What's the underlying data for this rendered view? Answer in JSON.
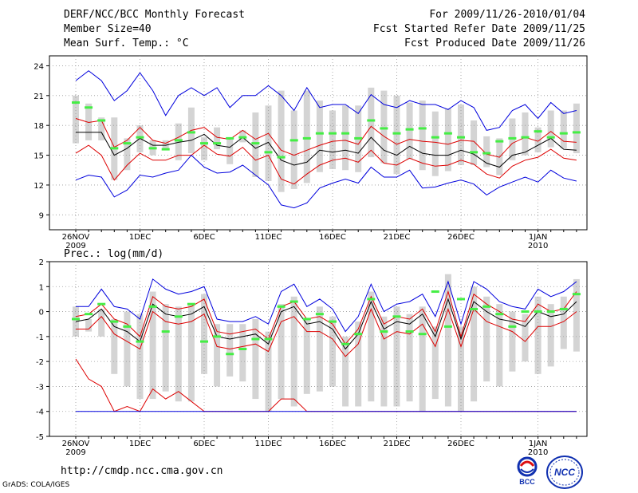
{
  "header": {
    "title": "DERF/NCC/BCC Monthly Forecast",
    "member": "Member Size=40",
    "panel1_label": "Mean Surf. Temp.: °C",
    "period": "For 2009/11/26-2010/01/04",
    "started": "Fcst Started Refer Date 2009/11/25",
    "produced": "Fcst Produced Date 2009/11/26"
  },
  "footer": {
    "url": "http://cmdp.ncc.cma.gov.cn",
    "grads": "GrADS: COLA/IGES",
    "logo_left": "BCC",
    "logo_right": "NCC"
  },
  "colors": {
    "blue": "#0000dd",
    "red": "#dd0000",
    "black": "#000000",
    "box": "#d4d4d4",
    "obs": "#44ee44"
  },
  "chart_data": [
    {
      "type": "line",
      "title": "Mean Surf. Temp.: °C",
      "days": [
        "26",
        "27",
        "28",
        "29",
        "30",
        "1",
        "2",
        "3",
        "4",
        "5",
        "6",
        "7",
        "8",
        "9",
        "10",
        "11",
        "12",
        "13",
        "14",
        "15",
        "16",
        "17",
        "18",
        "19",
        "20",
        "21",
        "22",
        "23",
        "24",
        "25",
        "26",
        "27",
        "28",
        "29",
        "30",
        "31",
        "1",
        "2",
        "3",
        "4"
      ],
      "xticks": [
        {
          "label": "26NOV",
          "sub": "2009",
          "i": 0
        },
        {
          "label": "1DEC",
          "sub": "",
          "i": 5
        },
        {
          "label": "6DEC",
          "sub": "",
          "i": 10
        },
        {
          "label": "11DEC",
          "sub": "",
          "i": 15
        },
        {
          "label": "16DEC",
          "sub": "",
          "i": 20
        },
        {
          "label": "21DEC",
          "sub": "",
          "i": 25
        },
        {
          "label": "26DEC",
          "sub": "",
          "i": 30
        },
        {
          "label": "1JAN",
          "sub": "2010",
          "i": 36
        }
      ],
      "yticks": [
        9,
        12,
        15,
        18,
        21,
        24
      ],
      "ylim": [
        7.5,
        25
      ],
      "grid": true,
      "series": [
        {
          "name": "max",
          "color": "blue",
          "values": [
            22.5,
            23.5,
            22.5,
            20.5,
            21.5,
            23.3,
            21.5,
            19.0,
            21.0,
            21.8,
            21.0,
            21.8,
            19.8,
            21.0,
            21.0,
            22.0,
            21.0,
            19.5,
            21.8,
            19.8,
            20.1,
            20.1,
            19.2,
            21.1,
            20.1,
            19.8,
            20.5,
            20.1,
            20.1,
            19.6,
            20.5,
            19.8,
            17.5,
            17.8,
            19.5,
            20.1,
            18.7,
            20.3,
            19.2,
            19.5
          ]
        },
        {
          "name": "upper",
          "color": "red",
          "values": [
            18.7,
            18.3,
            18.5,
            15.8,
            16.5,
            17.8,
            16.5,
            16.2,
            16.8,
            17.5,
            17.8,
            16.8,
            16.6,
            17.5,
            16.6,
            17.2,
            15.5,
            15.0,
            15.5,
            16.0,
            16.4,
            16.5,
            16.1,
            17.9,
            16.9,
            16.1,
            16.6,
            16.4,
            16.3,
            16.1,
            16.5,
            16.4,
            15.1,
            14.8,
            16.2,
            16.8,
            16.4,
            17.4,
            16.4,
            16.3
          ]
        },
        {
          "name": "mean",
          "color": "black",
          "values": [
            17.3,
            17.3,
            17.3,
            15.0,
            15.7,
            16.7,
            16.0,
            16.0,
            16.3,
            16.5,
            17.1,
            16.0,
            15.8,
            16.8,
            15.7,
            16.3,
            14.5,
            14.0,
            14.3,
            15.5,
            15.3,
            15.5,
            15.2,
            16.8,
            15.5,
            15.0,
            15.9,
            15.2,
            15.0,
            15.0,
            15.5,
            15.1,
            14.2,
            13.8,
            15.0,
            15.3,
            16.0,
            16.7,
            15.6,
            15.5
          ]
        },
        {
          "name": "lower",
          "color": "red",
          "values": [
            15.2,
            16.0,
            15.0,
            12.5,
            14.0,
            15.2,
            14.5,
            14.5,
            15.0,
            15.0,
            16.0,
            15.1,
            14.9,
            15.8,
            14.5,
            15.0,
            12.6,
            12.1,
            13.1,
            14.0,
            14.5,
            14.7,
            14.3,
            15.5,
            14.2,
            14.0,
            14.7,
            14.2,
            13.9,
            14.0,
            14.5,
            14.1,
            13.1,
            12.7,
            13.9,
            14.5,
            14.8,
            15.6,
            14.7,
            14.5
          ]
        },
        {
          "name": "min",
          "color": "blue",
          "values": [
            12.5,
            13.0,
            12.8,
            10.8,
            11.5,
            13.0,
            12.8,
            13.2,
            13.5,
            15.0,
            13.8,
            13.2,
            13.3,
            14.0,
            13.0,
            12.0,
            10.0,
            9.7,
            10.2,
            11.7,
            12.2,
            12.6,
            12.2,
            13.8,
            12.8,
            12.8,
            13.5,
            11.7,
            11.8,
            12.2,
            12.5,
            12.1,
            11.0,
            11.8,
            12.3,
            12.8,
            12.3,
            13.5,
            12.7,
            12.4
          ]
        }
      ],
      "box_low": [
        16.2,
        16.5,
        16.5,
        12.5,
        13.5,
        15.3,
        15.0,
        15.5,
        14.5,
        15.2,
        14.5,
        15.6,
        14.1,
        16.3,
        12.8,
        12.4,
        11.3,
        11.6,
        12.2,
        13.3,
        13.6,
        13.5,
        13.3,
        14.8,
        14.2,
        13.1,
        14.6,
        13.5,
        12.9,
        13.4,
        14.0,
        14.0,
        13.8,
        13.0,
        14.5,
        15.0,
        15.3,
        15.8,
        15.7,
        15.2
      ],
      "box_high": [
        21.0,
        20.2,
        18.8,
        18.8,
        16.7,
        18.0,
        16.5,
        16.5,
        18.2,
        19.8,
        16.8,
        17.8,
        16.6,
        17.5,
        19.3,
        20.0,
        21.5,
        19.5,
        21.5,
        20.5,
        19.5,
        20.0,
        20.0,
        21.8,
        21.5,
        21.0,
        20.3,
        20.5,
        19.4,
        19.7,
        20.1,
        18.5,
        16.9,
        16.7,
        18.7,
        19.3,
        17.8,
        19.5,
        19.5,
        20.2
      ],
      "observed": [
        20.3,
        19.8,
        18.5,
        15.7,
        16.2,
        16.8,
        15.7,
        15.6,
        16.5,
        17.3,
        16.2,
        16.2,
        16.7,
        16.8,
        16.2,
        15.3,
        14.8,
        16.5,
        16.7,
        17.2,
        17.2,
        17.2,
        16.7,
        18.5,
        17.7,
        17.2,
        17.6,
        17.7,
        16.8,
        17.2,
        16.8,
        15.3,
        15.2,
        16.4,
        16.7,
        16.8,
        17.4,
        16.8,
        17.2,
        17.3
      ]
    },
    {
      "type": "line",
      "title": "Prec.: log(mm/d)",
      "xticks": [
        {
          "label": "26NOV",
          "sub": "2009",
          "i": 0
        },
        {
          "label": "1DEC",
          "sub": "",
          "i": 5
        },
        {
          "label": "6DEC",
          "sub": "",
          "i": 10
        },
        {
          "label": "11DEC",
          "sub": "",
          "i": 15
        },
        {
          "label": "16DEC",
          "sub": "",
          "i": 20
        },
        {
          "label": "21DEC",
          "sub": "",
          "i": 25
        },
        {
          "label": "26DEC",
          "sub": "",
          "i": 30
        },
        {
          "label": "1JAN",
          "sub": "2010",
          "i": 36
        }
      ],
      "yticks": [
        -5,
        -4,
        -3,
        -2,
        -1,
        0,
        1,
        2
      ],
      "ylim": [
        -5,
        2
      ],
      "grid": true,
      "series": [
        {
          "name": "max",
          "color": "blue",
          "values": [
            0.2,
            0.2,
            0.9,
            0.2,
            0.1,
            -0.3,
            1.3,
            0.9,
            0.7,
            0.8,
            1.0,
            -0.3,
            -0.4,
            -0.4,
            -0.2,
            -0.5,
            0.8,
            1.1,
            0.2,
            0.5,
            0.1,
            -0.8,
            -0.2,
            1.1,
            0.0,
            0.3,
            0.4,
            0.7,
            -0.2,
            1.2,
            -0.5,
            1.2,
            0.9,
            0.4,
            0.2,
            0.1,
            0.9,
            0.6,
            0.8,
            1.2
          ]
        },
        {
          "name": "upper",
          "color": "red",
          "values": [
            -0.2,
            -0.1,
            0.3,
            -0.3,
            -0.5,
            -1.0,
            0.6,
            0.2,
            0.1,
            0.2,
            0.5,
            -0.8,
            -0.9,
            -0.8,
            -0.7,
            -1.1,
            0.2,
            0.4,
            -0.3,
            -0.2,
            -0.5,
            -1.3,
            -0.7,
            0.6,
            -0.5,
            -0.2,
            -0.3,
            0.1,
            -0.8,
            0.8,
            -1.0,
            0.7,
            0.3,
            0.0,
            -0.3,
            -0.4,
            0.3,
            0.0,
            0.1,
            0.8
          ]
        },
        {
          "name": "mean",
          "color": "black",
          "values": [
            -0.4,
            -0.3,
            0.1,
            -0.6,
            -0.8,
            -1.2,
            0.3,
            -0.1,
            -0.2,
            -0.1,
            0.2,
            -1.0,
            -1.1,
            -1.0,
            -0.9,
            -1.3,
            0.0,
            0.2,
            -0.5,
            -0.4,
            -0.7,
            -1.5,
            -0.9,
            0.4,
            -0.7,
            -0.4,
            -0.5,
            -0.1,
            -1.0,
            0.5,
            -1.1,
            0.4,
            0.0,
            -0.3,
            -0.4,
            -0.6,
            0.0,
            -0.2,
            -0.1,
            0.4
          ]
        },
        {
          "name": "lower",
          "color": "red",
          "values": [
            -0.7,
            -0.7,
            -0.2,
            -0.9,
            -1.2,
            -1.5,
            0.0,
            -0.4,
            -0.5,
            -0.4,
            -0.1,
            -1.4,
            -1.5,
            -1.4,
            -1.3,
            -1.6,
            -0.4,
            -0.2,
            -0.8,
            -0.8,
            -1.1,
            -1.8,
            -1.3,
            0.1,
            -1.1,
            -0.8,
            -0.9,
            -0.5,
            -1.4,
            0.1,
            -1.4,
            0.1,
            -0.4,
            -0.6,
            -0.8,
            -1.2,
            -0.6,
            -0.6,
            -0.4,
            0.0
          ]
        },
        {
          "name": "min",
          "color": "red",
          "values": [
            -1.9,
            -2.7,
            -3.0,
            -4.0,
            -3.8,
            -4.0,
            -3.1,
            -3.5,
            -3.2,
            -3.6,
            -4.0,
            -4.0,
            -4.0,
            -4.0,
            -4.0,
            -4.0,
            -3.5,
            -3.5,
            -4.0,
            -4.0,
            -4.0,
            -4.0,
            -4.0,
            -4.0,
            -4.0,
            -4.0,
            -4.0,
            -4.0,
            -4.0,
            -4.0,
            -4.0,
            -4.0,
            -4.0,
            -4.0,
            -4.0,
            -4.0,
            -4.0,
            -4.0,
            -4.0,
            -4.0
          ]
        },
        {
          "name": "baseline",
          "color": "blue",
          "values": [
            -4.0,
            -4.0,
            -4.0,
            -4.0,
            -4.0,
            -4.0,
            -4.0,
            -4.0,
            -4.0,
            -4.0,
            -4.0,
            -4.0,
            -4.0,
            -4.0,
            -4.0,
            -4.0,
            -4.0,
            -4.0,
            -4.0,
            -4.0,
            -4.0,
            -4.0,
            -4.0,
            -4.0,
            -4.0,
            -4.0,
            -4.0,
            -4.0,
            -4.0,
            -4.0,
            -4.0,
            -4.0,
            -4.0,
            -4.0,
            -4.0,
            -4.0,
            -4.0,
            -4.0,
            -4.0,
            -4.0
          ]
        }
      ],
      "box_low": [
        -1.0,
        -0.8,
        -1.0,
        -2.5,
        -3.0,
        -3.5,
        -3.5,
        -3.2,
        -3.6,
        -3.6,
        -2.5,
        -3.0,
        -2.6,
        -2.8,
        -3.5,
        -4.0,
        -3.5,
        -3.8,
        -3.3,
        -3.2,
        -3.0,
        -3.8,
        -3.8,
        -3.6,
        -3.8,
        -3.8,
        -3.6,
        -4.0,
        -3.5,
        -3.8,
        -4.0,
        -3.6,
        -2.8,
        -3.0,
        -2.4,
        -2.0,
        -2.5,
        -2.2,
        -1.5,
        -1.6
      ],
      "box_high": [
        0.2,
        -0.3,
        0.1,
        -0.3,
        0.0,
        -0.1,
        0.8,
        0.3,
        0.2,
        0.3,
        0.7,
        -0.5,
        -0.5,
        -0.5,
        -0.3,
        -0.8,
        0.3,
        0.6,
        -0.3,
        0.2,
        -0.2,
        -1.0,
        -0.4,
        0.8,
        -0.2,
        0.2,
        -0.1,
        0.2,
        -0.6,
        1.5,
        -0.6,
        1.0,
        0.6,
        0.3,
        0.0,
        -0.1,
        0.6,
        0.3,
        0.6,
        1.3
      ],
      "observed": [
        -0.3,
        -0.1,
        0.3,
        -0.4,
        -0.6,
        -1.2,
        0.2,
        -0.8,
        -0.2,
        0.3,
        -1.2,
        -1.0,
        -1.7,
        -1.5,
        -1.1,
        -1.1,
        0.2,
        0.4,
        -0.3,
        -0.1,
        -0.4,
        -1.3,
        -0.9,
        0.5,
        -0.8,
        -0.2,
        -0.8,
        -0.9,
        0.8,
        -0.6,
        0.5,
        0.1,
        0.2,
        -0.1,
        -0.6,
        0.0,
        0.0,
        0.0,
        0.1,
        0.7
      ]
    }
  ]
}
